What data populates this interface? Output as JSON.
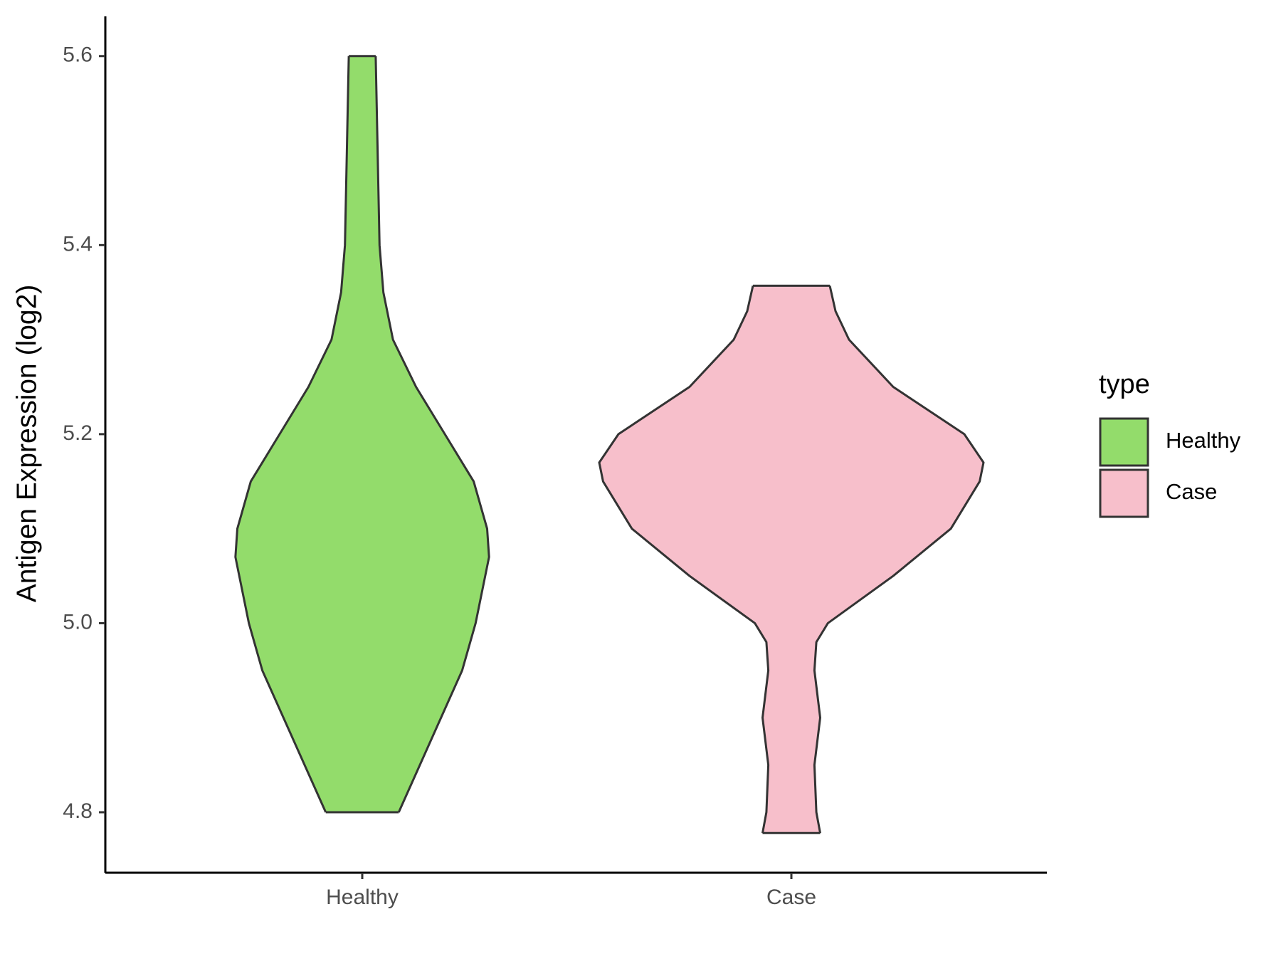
{
  "chart_data": {
    "type": "violin",
    "y_label": "Antigen Expression (log2)",
    "categories": [
      "Healthy",
      "Case"
    ],
    "legend_title": "type",
    "series": [
      {
        "name": "Healthy",
        "color": "#93dc6b",
        "y": [
          4.8,
          4.85,
          4.9,
          4.95,
          5.0,
          5.07,
          5.1,
          5.15,
          5.2,
          5.25,
          5.3,
          5.35,
          5.4,
          5.5,
          5.6
        ],
        "width": [
          0.19,
          0.3,
          0.41,
          0.52,
          0.59,
          0.66,
          0.65,
          0.58,
          0.43,
          0.28,
          0.16,
          0.11,
          0.09,
          0.08,
          0.07
        ]
      },
      {
        "name": "Case",
        "color": "#f7bfcb",
        "y": [
          4.778,
          4.8,
          4.85,
          4.9,
          4.95,
          4.98,
          5.0,
          5.05,
          5.1,
          5.15,
          5.17,
          5.2,
          5.25,
          5.3,
          5.33,
          5.357
        ],
        "width": [
          0.15,
          0.13,
          0.12,
          0.15,
          0.12,
          0.13,
          0.19,
          0.53,
          0.83,
          0.98,
          1.0,
          0.9,
          0.53,
          0.3,
          0.23,
          0.2
        ]
      }
    ],
    "ylim": [
      4.736,
      5.642
    ],
    "yticks": [
      {
        "value": 4.8,
        "label": "4.8"
      },
      {
        "value": 5.0,
        "label": "5.0"
      },
      {
        "value": 5.2,
        "label": "5.2"
      },
      {
        "value": 5.4,
        "label": "5.4"
      },
      {
        "value": 5.6,
        "label": "5.6"
      }
    ],
    "grid": false,
    "legend": "right"
  }
}
